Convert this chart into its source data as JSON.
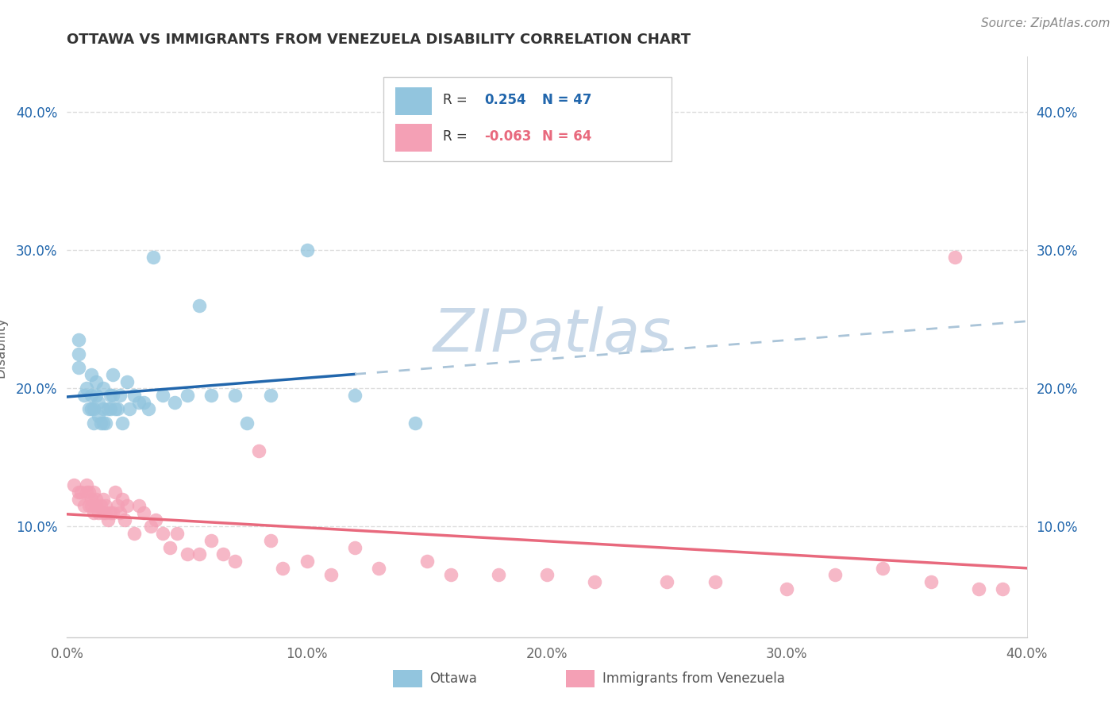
{
  "title": "OTTAWA VS IMMIGRANTS FROM VENEZUELA DISABILITY CORRELATION CHART",
  "source": "Source: ZipAtlas.com",
  "ylabel": "Disability",
  "r_ottawa": 0.254,
  "n_ottawa": 47,
  "r_venezuela": -0.063,
  "n_venezuela": 64,
  "ottawa_color": "#92c5de",
  "venezuela_color": "#f4a0b5",
  "ottawa_line_color": "#2166ac",
  "venezuela_line_color": "#e8697d",
  "trendline_dashed_color": "#aac4d8",
  "watermark_color": "#c8d8e8",
  "background_color": "#ffffff",
  "grid_color": "#dddddd",
  "ytick_values": [
    0.1,
    0.2,
    0.3,
    0.4
  ],
  "xmin": 0.0,
  "xmax": 0.4,
  "ymin": 0.02,
  "ymax": 0.44,
  "ottawa_x": [
    0.005,
    0.005,
    0.005,
    0.007,
    0.008,
    0.009,
    0.01,
    0.01,
    0.01,
    0.011,
    0.011,
    0.012,
    0.012,
    0.013,
    0.013,
    0.014,
    0.015,
    0.015,
    0.015,
    0.016,
    0.017,
    0.018,
    0.018,
    0.019,
    0.019,
    0.02,
    0.021,
    0.022,
    0.023,
    0.025,
    0.026,
    0.028,
    0.03,
    0.032,
    0.034,
    0.036,
    0.04,
    0.045,
    0.05,
    0.055,
    0.06,
    0.07,
    0.075,
    0.085,
    0.1,
    0.12,
    0.145
  ],
  "ottawa_y": [
    0.215,
    0.225,
    0.235,
    0.195,
    0.2,
    0.185,
    0.185,
    0.195,
    0.21,
    0.175,
    0.185,
    0.195,
    0.205,
    0.18,
    0.19,
    0.175,
    0.175,
    0.185,
    0.2,
    0.175,
    0.185,
    0.185,
    0.195,
    0.195,
    0.21,
    0.185,
    0.185,
    0.195,
    0.175,
    0.205,
    0.185,
    0.195,
    0.19,
    0.19,
    0.185,
    0.295,
    0.195,
    0.19,
    0.195,
    0.26,
    0.195,
    0.195,
    0.175,
    0.195,
    0.3,
    0.195,
    0.175
  ],
  "venezuela_x": [
    0.003,
    0.005,
    0.005,
    0.006,
    0.007,
    0.008,
    0.008,
    0.009,
    0.009,
    0.01,
    0.01,
    0.011,
    0.011,
    0.012,
    0.012,
    0.013,
    0.014,
    0.015,
    0.015,
    0.016,
    0.016,
    0.017,
    0.018,
    0.019,
    0.02,
    0.021,
    0.022,
    0.023,
    0.024,
    0.025,
    0.028,
    0.03,
    0.032,
    0.035,
    0.037,
    0.04,
    0.043,
    0.046,
    0.05,
    0.055,
    0.06,
    0.065,
    0.07,
    0.08,
    0.085,
    0.09,
    0.1,
    0.11,
    0.12,
    0.13,
    0.15,
    0.16,
    0.18,
    0.2,
    0.22,
    0.25,
    0.27,
    0.3,
    0.32,
    0.34,
    0.36,
    0.37,
    0.38,
    0.39
  ],
  "venezuela_y": [
    0.13,
    0.125,
    0.12,
    0.125,
    0.115,
    0.125,
    0.13,
    0.115,
    0.125,
    0.12,
    0.115,
    0.11,
    0.125,
    0.115,
    0.12,
    0.11,
    0.115,
    0.11,
    0.12,
    0.11,
    0.115,
    0.105,
    0.11,
    0.11,
    0.125,
    0.115,
    0.11,
    0.12,
    0.105,
    0.115,
    0.095,
    0.115,
    0.11,
    0.1,
    0.105,
    0.095,
    0.085,
    0.095,
    0.08,
    0.08,
    0.09,
    0.08,
    0.075,
    0.155,
    0.09,
    0.07,
    0.075,
    0.065,
    0.085,
    0.07,
    0.075,
    0.065,
    0.065,
    0.065,
    0.06,
    0.06,
    0.06,
    0.055,
    0.065,
    0.07,
    0.06,
    0.295,
    0.055,
    0.055
  ]
}
